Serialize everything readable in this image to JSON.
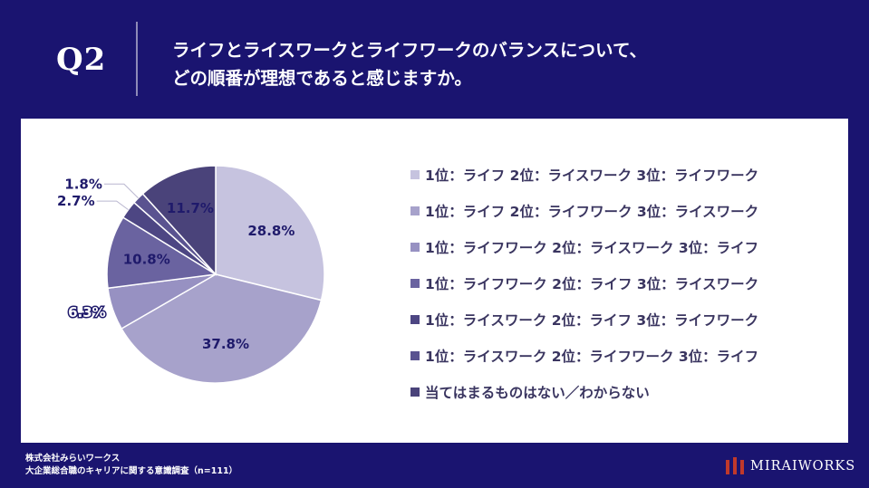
{
  "header": {
    "q_label": "Q2",
    "question_lines": [
      "ライフとライスワークとライフワークのバランスについて、",
      "どの順番が理想であると感じますか。"
    ]
  },
  "chart_data": {
    "type": "pie",
    "slices": [
      {
        "label": "1位：ライフ 2位：ライスワーク 3位：ライフワーク",
        "value": 28.8,
        "value_label": "28.8%",
        "color": "#c6c3df"
      },
      {
        "label": "1位：ライフ 2位：ライフワーク 3位：ライスワーク",
        "value": 37.8,
        "value_label": "37.8%",
        "color": "#a7a2cb"
      },
      {
        "label": "1位：ライフワーク 2位：ライスワーク 3位：ライフ",
        "value": 6.3,
        "value_label": "6.3%",
        "color": "#9791c2"
      },
      {
        "label": "1位：ライフワーク 2位：ライフ 3位：ライスワーク",
        "value": 10.8,
        "value_label": "10.8%",
        "color": "#6a63a0"
      },
      {
        "label": "1位：ライスワーク 2位：ライフ 3位：ライフワーク",
        "value": 2.7,
        "value_label": "2.7%",
        "color": "#4d4683"
      },
      {
        "label": "1位：ライスワーク 2位：ライフワーク 3位：ライフ",
        "value": 1.8,
        "value_label": "1.8%",
        "color": "#5a5390"
      },
      {
        "label": "当てはまるものはない／わからない",
        "value": 11.7,
        "value_label": "11.7%",
        "color": "#4a437a"
      }
    ],
    "legend_position": "right",
    "start_angle_deg": 0,
    "direction": "clockwise"
  },
  "footer": {
    "company": "株式会社みらいワークス",
    "survey": "大企業総合職のキャリアに関する意識調査（n=111）"
  },
  "brand": {
    "name": "MIRAIWORKS",
    "logo_icon": "mirai-works-logo-icon",
    "logo_color": "#c0392b"
  },
  "colors": {
    "background": "#1a1470",
    "panel": "#ffffff",
    "label_text": "#1f1a6b"
  }
}
